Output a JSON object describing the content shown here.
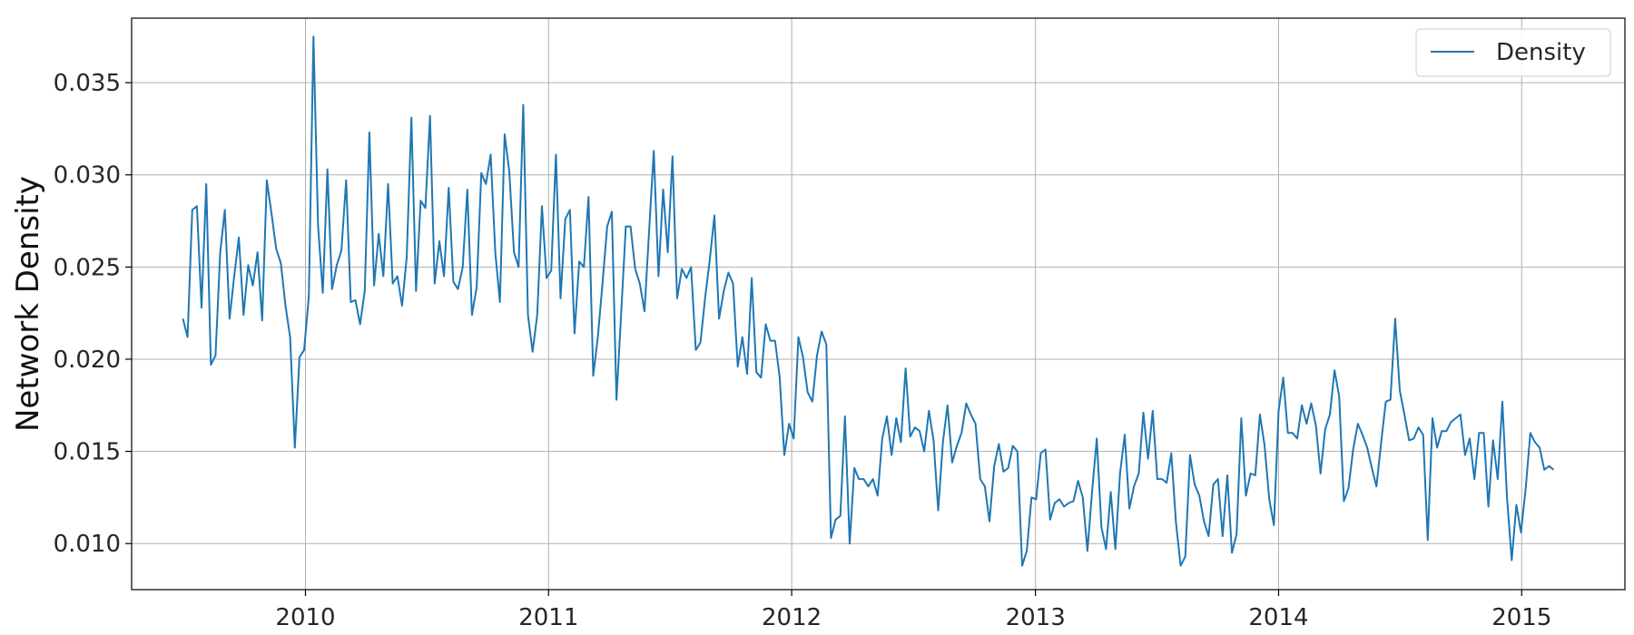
{
  "chart_data": {
    "type": "line",
    "title": "",
    "xlabel": "",
    "ylabel": "Network Density",
    "ylim": [
      0.0075,
      0.0385
    ],
    "xlim": [
      "2009-04-15",
      "2015-06-05"
    ],
    "grid": true,
    "legend_placement": "top-right",
    "x_ticks": [
      {
        "label": "2010",
        "value": "2010-01-01"
      },
      {
        "label": "2011",
        "value": "2011-01-01"
      },
      {
        "label": "2012",
        "value": "2012-01-01"
      },
      {
        "label": "2013",
        "value": "2013-01-01"
      },
      {
        "label": "2014",
        "value": "2014-01-01"
      },
      {
        "label": "2015",
        "value": "2015-01-01"
      }
    ],
    "y_ticks": [
      {
        "label": "0.010",
        "value": 0.01
      },
      {
        "label": "0.015",
        "value": 0.015
      },
      {
        "label": "0.020",
        "value": 0.02
      },
      {
        "label": "0.025",
        "value": 0.025
      },
      {
        "label": "0.030",
        "value": 0.03
      },
      {
        "label": "0.035",
        "value": 0.035
      }
    ],
    "series": [
      {
        "name": "Density",
        "color": "#1f77b4",
        "start_date": "2009-07-01",
        "interval_days": 7,
        "values": [
          0.0222,
          0.0212,
          0.0281,
          0.0283,
          0.0228,
          0.0295,
          0.0197,
          0.0202,
          0.0258,
          0.0281,
          0.0222,
          0.0245,
          0.0266,
          0.0224,
          0.0251,
          0.024,
          0.0258,
          0.0221,
          0.0297,
          0.0279,
          0.026,
          0.0252,
          0.0229,
          0.0212,
          0.0152,
          0.0201,
          0.0205,
          0.0234,
          0.0375,
          0.0272,
          0.0236,
          0.0303,
          0.0238,
          0.0251,
          0.0259,
          0.0297,
          0.0231,
          0.0232,
          0.0219,
          0.0237,
          0.0323,
          0.024,
          0.0268,
          0.0245,
          0.0295,
          0.0241,
          0.0245,
          0.0229,
          0.0255,
          0.0331,
          0.0237,
          0.0286,
          0.0282,
          0.0332,
          0.0241,
          0.0264,
          0.0245,
          0.0293,
          0.0242,
          0.0238,
          0.025,
          0.0292,
          0.0224,
          0.0239,
          0.0301,
          0.0295,
          0.0311,
          0.0258,
          0.0231,
          0.0322,
          0.0302,
          0.0258,
          0.025,
          0.0338,
          0.0224,
          0.0204,
          0.0224,
          0.0283,
          0.0244,
          0.0248,
          0.0311,
          0.0233,
          0.0276,
          0.0281,
          0.0214,
          0.0253,
          0.025,
          0.0288,
          0.0191,
          0.0212,
          0.0241,
          0.0272,
          0.028,
          0.0178,
          0.0225,
          0.0272,
          0.0272,
          0.0249,
          0.0241,
          0.0226,
          0.027,
          0.0313,
          0.0245,
          0.0292,
          0.0258,
          0.031,
          0.0233,
          0.0249,
          0.0244,
          0.025,
          0.0205,
          0.0209,
          0.0233,
          0.0254,
          0.0278,
          0.0222,
          0.0237,
          0.0247,
          0.0241,
          0.0196,
          0.0212,
          0.0192,
          0.0244,
          0.0193,
          0.019,
          0.0219,
          0.021,
          0.021,
          0.019,
          0.0148,
          0.0165,
          0.0157,
          0.0212,
          0.0201,
          0.0182,
          0.0177,
          0.0202,
          0.0215,
          0.0208,
          0.0103,
          0.0113,
          0.0115,
          0.0169,
          0.01,
          0.0141,
          0.0135,
          0.0135,
          0.0131,
          0.0135,
          0.0126,
          0.0157,
          0.0169,
          0.0148,
          0.0168,
          0.0155,
          0.0195,
          0.0158,
          0.0163,
          0.0161,
          0.015,
          0.0172,
          0.0156,
          0.0118,
          0.0155,
          0.0175,
          0.0144,
          0.0153,
          0.016,
          0.0176,
          0.017,
          0.0165,
          0.0135,
          0.0131,
          0.0112,
          0.0142,
          0.0154,
          0.0139,
          0.0141,
          0.0153,
          0.015,
          0.0088,
          0.0096,
          0.0125,
          0.0124,
          0.0149,
          0.0151,
          0.0113,
          0.0122,
          0.0124,
          0.012,
          0.0122,
          0.0123,
          0.0134,
          0.0125,
          0.0096,
          0.0128,
          0.0157,
          0.0109,
          0.0097,
          0.0128,
          0.0097,
          0.0138,
          0.0159,
          0.0119,
          0.0131,
          0.0138,
          0.0171,
          0.0146,
          0.0172,
          0.0135,
          0.0135,
          0.0133,
          0.0149,
          0.0111,
          0.0088,
          0.0093,
          0.0148,
          0.0132,
          0.0126,
          0.0112,
          0.0104,
          0.0132,
          0.0135,
          0.0104,
          0.0137,
          0.0095,
          0.0105,
          0.0168,
          0.0126,
          0.0138,
          0.0137,
          0.017,
          0.0153,
          0.0124,
          0.011,
          0.0172,
          0.019,
          0.016,
          0.016,
          0.0157,
          0.0175,
          0.0165,
          0.0176,
          0.0164,
          0.0138,
          0.0162,
          0.017,
          0.0194,
          0.018,
          0.0123,
          0.013,
          0.0151,
          0.0165,
          0.0159,
          0.0152,
          0.0141,
          0.0131,
          0.0155,
          0.0177,
          0.0178,
          0.0222,
          0.0183,
          0.017,
          0.0156,
          0.0157,
          0.0163,
          0.0159,
          0.0102,
          0.0168,
          0.0152,
          0.0161,
          0.0161,
          0.0166,
          0.0168,
          0.017,
          0.0148,
          0.0157,
          0.0135,
          0.016,
          0.016,
          0.012,
          0.0156,
          0.0135,
          0.0177,
          0.0125,
          0.0091,
          0.0121,
          0.0106,
          0.013,
          0.016,
          0.0155,
          0.0152,
          0.014,
          0.0142,
          0.014
        ]
      }
    ]
  }
}
